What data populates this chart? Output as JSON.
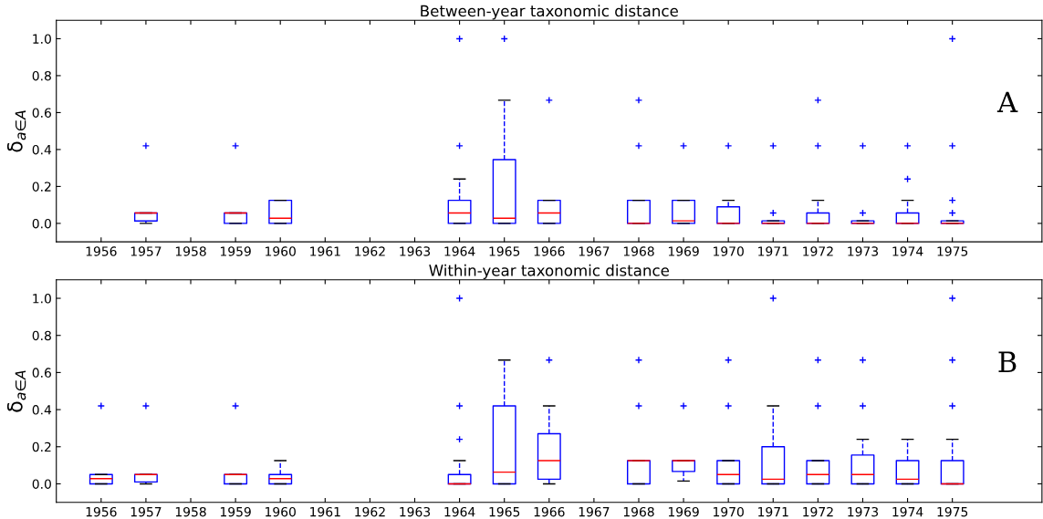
{
  "chart_data": [
    {
      "type": "box",
      "title": "Between-year taxonomic distance",
      "ylabel": "δ$_{a∈A}$",
      "annotations": [
        "A"
      ],
      "categories": [
        "1956",
        "1957",
        "1958",
        "1959",
        "1960",
        "1961",
        "1962",
        "1963",
        "1964",
        "1965",
        "1966",
        "1967",
        "1968",
        "1969",
        "1970",
        "1971",
        "1972",
        "1973",
        "1974",
        "1975"
      ],
      "ylim": [
        -0.1,
        1.1
      ],
      "yticks": [
        {
          "value": 0,
          "label": "0.0"
        },
        {
          "value": 0.2,
          "label": "0.2"
        },
        {
          "value": 0.4,
          "label": "0.4"
        },
        {
          "value": 0.6,
          "label": "0.6"
        },
        {
          "value": 0.8,
          "label": "0.8"
        },
        {
          "value": 1,
          "label": "1.0"
        }
      ],
      "grid": false,
      "series": [
        {
          "color": "#0000ff",
          "boxes": [
            null,
            {
              "low": 0,
              "q1": 0.013,
              "median": 0.056,
              "q3": 0.056,
              "high": 0.056,
              "outliers": [
                0.42
              ]
            },
            null,
            {
              "low": 0,
              "q1": 0,
              "median": 0.056,
              "q3": 0.056,
              "high": 0.056,
              "outliers": [
                0.42
              ]
            },
            {
              "low": 0,
              "q1": 0,
              "median": 0.028,
              "q3": 0.125,
              "high": 0.125
            },
            null,
            null,
            null,
            {
              "low": 0,
              "q1": 0,
              "median": 0.056,
              "q3": 0.125,
              "high": 0.24,
              "outliers": [
                0.42,
                1.0
              ]
            },
            {
              "low": 0,
              "q1": 0,
              "median": 0.028,
              "q3": 0.345,
              "high": 0.667,
              "outliers": [
                1.0
              ]
            },
            {
              "low": 0,
              "q1": 0,
              "median": 0.056,
              "q3": 0.125,
              "high": 0.125,
              "outliers": [
                0.667
              ]
            },
            null,
            {
              "low": 0,
              "q1": 0,
              "median": 0,
              "q3": 0.125,
              "high": 0.125,
              "outliers": [
                0.42,
                0.667
              ]
            },
            {
              "low": 0,
              "q1": 0,
              "median": 0.014,
              "q3": 0.125,
              "high": 0.125,
              "outliers": [
                0.42
              ]
            },
            {
              "low": 0,
              "q1": 0,
              "median": 0,
              "q3": 0.09,
              "high": 0.125,
              "outliers": [
                0.42
              ]
            },
            {
              "low": 0,
              "q1": 0,
              "median": 0,
              "q3": 0.014,
              "high": 0.014,
              "outliers": [
                0.056,
                0.42
              ]
            },
            {
              "low": 0,
              "q1": 0,
              "median": 0,
              "q3": 0.056,
              "high": 0.125,
              "outliers": [
                0.42,
                0.667
              ]
            },
            {
              "low": 0,
              "q1": 0,
              "median": 0,
              "q3": 0.014,
              "high": 0.014,
              "outliers": [
                0.056,
                0.42
              ]
            },
            {
              "low": 0,
              "q1": 0,
              "median": 0,
              "q3": 0.056,
              "high": 0.125,
              "outliers": [
                0.24,
                0.42
              ]
            },
            {
              "low": 0,
              "q1": 0,
              "median": 0,
              "q3": 0.014,
              "high": 0.014,
              "outliers": [
                0.056,
                0.125,
                0.42,
                1.0
              ]
            }
          ]
        }
      ]
    },
    {
      "type": "box",
      "title": "Within-year taxonomic distance",
      "ylabel": "δ$_{a∈A}$",
      "annotations": [
        "B"
      ],
      "categories": [
        "1956",
        "1957",
        "1958",
        "1959",
        "1960",
        "1961",
        "1962",
        "1963",
        "1964",
        "1965",
        "1966",
        "1967",
        "1968",
        "1969",
        "1970",
        "1971",
        "1972",
        "1973",
        "1974",
        "1975"
      ],
      "ylim": [
        -0.1,
        1.1
      ],
      "yticks": [
        {
          "value": 0,
          "label": "0.0"
        },
        {
          "value": 0.2,
          "label": "0.2"
        },
        {
          "value": 0.4,
          "label": "0.4"
        },
        {
          "value": 0.6,
          "label": "0.6"
        },
        {
          "value": 0.8,
          "label": "0.8"
        },
        {
          "value": 1,
          "label": "1.0"
        }
      ],
      "grid": false,
      "series": [
        {
          "color": "#0000ff",
          "boxes": [
            {
              "low": 0,
              "q1": 0,
              "median": 0.028,
              "q3": 0.05,
              "high": 0.05,
              "outliers": [
                0.42
              ]
            },
            {
              "low": 0,
              "q1": 0.01,
              "median": 0.05,
              "q3": 0.05,
              "high": 0.05,
              "outliers": [
                0.42
              ]
            },
            null,
            {
              "low": 0,
              "q1": 0,
              "median": 0.05,
              "q3": 0.05,
              "high": 0.05,
              "outliers": [
                0.42
              ]
            },
            {
              "low": 0,
              "q1": 0,
              "median": 0.028,
              "q3": 0.05,
              "high": 0.125
            },
            null,
            null,
            null,
            {
              "low": 0,
              "q1": 0,
              "median": 0,
              "q3": 0.05,
              "high": 0.125,
              "outliers": [
                0.24,
                0.42,
                1.0
              ]
            },
            {
              "low": 0,
              "q1": 0,
              "median": 0.063,
              "q3": 0.42,
              "high": 0.667
            },
            {
              "low": 0,
              "q1": 0.025,
              "median": 0.125,
              "q3": 0.27,
              "high": 0.42,
              "outliers": [
                0.667
              ]
            },
            null,
            {
              "low": 0,
              "q1": 0,
              "median": 0.125,
              "q3": 0.125,
              "high": 0.125,
              "outliers": [
                0.42,
                0.667
              ]
            },
            {
              "low": 0.015,
              "q1": 0.067,
              "median": 0.125,
              "q3": 0.125,
              "high": 0.125,
              "outliers": [
                0.42
              ]
            },
            {
              "low": 0,
              "q1": 0,
              "median": 0.05,
              "q3": 0.125,
              "high": 0.125,
              "outliers": [
                0.42,
                0.667
              ]
            },
            {
              "low": 0,
              "q1": 0,
              "median": 0.025,
              "q3": 0.2,
              "high": 0.42,
              "outliers": [
                1.0
              ]
            },
            {
              "low": 0,
              "q1": 0,
              "median": 0.05,
              "q3": 0.125,
              "high": 0.125,
              "outliers": [
                0.42,
                0.667
              ]
            },
            {
              "low": 0,
              "q1": 0,
              "median": 0.05,
              "q3": 0.155,
              "high": 0.24,
              "outliers": [
                0.42,
                0.667
              ]
            },
            {
              "low": 0,
              "q1": 0,
              "median": 0.025,
              "q3": 0.125,
              "high": 0.24
            },
            {
              "low": 0,
              "q1": 0,
              "median": 0,
              "q3": 0.125,
              "high": 0.24,
              "outliers": [
                0.42,
                0.667,
                1.0
              ]
            }
          ]
        }
      ]
    }
  ]
}
